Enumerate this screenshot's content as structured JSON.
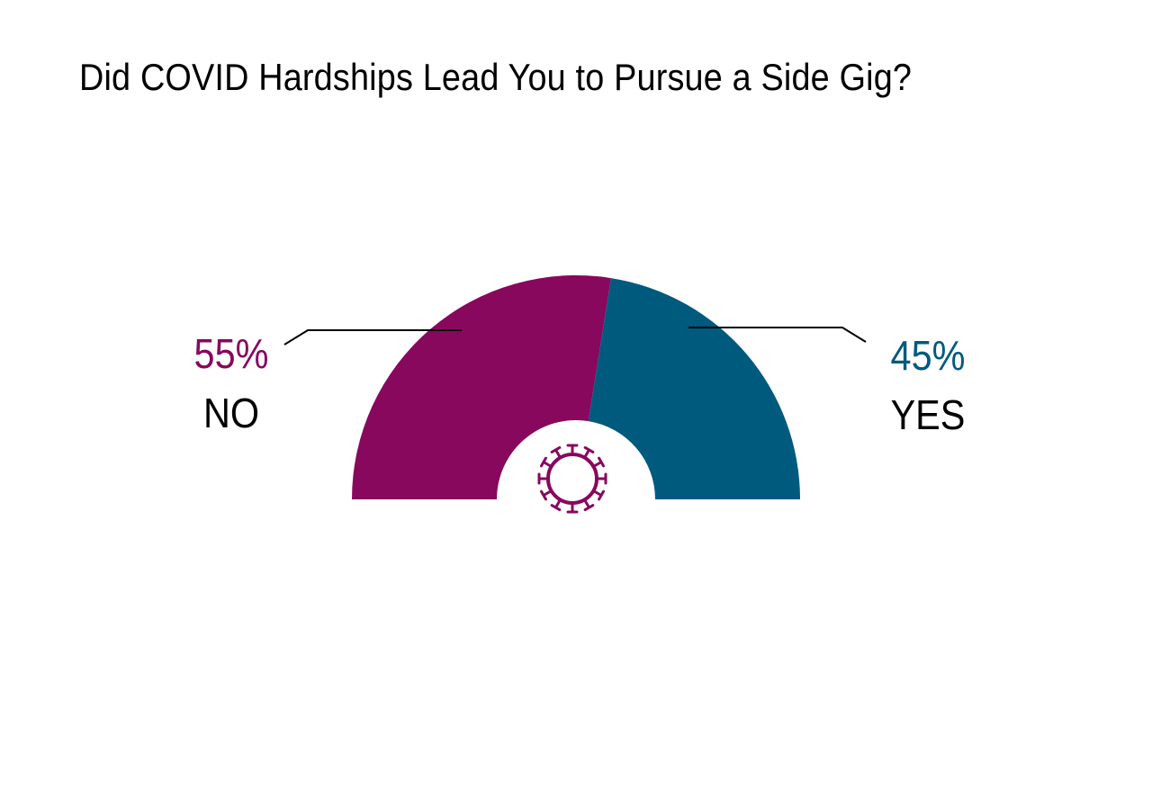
{
  "chart_data": {
    "type": "pie",
    "subtype": "semicircle-donut",
    "title": "Did COVID Hardships Lead You to Pursue a Side Gig?",
    "slices": [
      {
        "label": "NO",
        "value": 55,
        "value_label": "55%",
        "color": "#88085d"
      },
      {
        "label": "YES",
        "value": 45,
        "value_label": "45%",
        "color": "#005a7e"
      }
    ],
    "center_icon": "virus-icon",
    "center_icon_color": "#88085d",
    "leader_line_color": "#000000"
  }
}
